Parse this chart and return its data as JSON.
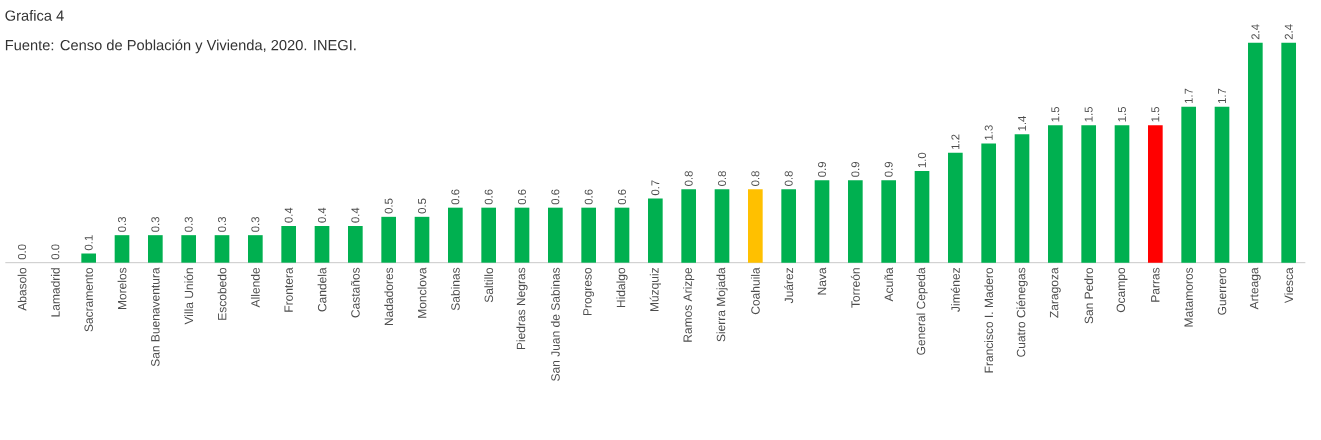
{
  "chart_data": {
    "type": "bar",
    "title": "Grafica 4",
    "annotations": [
      "Fuente: Censo de Población y Vivienda, 2020. INEGI."
    ],
    "categories": [
      "Abasolo",
      "Lamadrid",
      "Sacramento",
      "Morelos",
      "San Buenaventura",
      "Villa Unión",
      "Escobedo",
      "Allende",
      "Frontera",
      "Candela",
      "Castaños",
      "Nadadores",
      "Monclova",
      "Sabinas",
      "Saltillo",
      "Piedras Negras",
      "San Juan de Sabinas",
      "Progreso",
      "Hidalgo",
      "Múzquiz",
      "Ramos Arizpe",
      "Sierra Mojada",
      "Coahuila",
      "Juárez",
      "Nava",
      "Torreón",
      "Acuña",
      "General Cepeda",
      "Jiménez",
      "Francisco I. Madero",
      "Cuatro Ciénegas",
      "Zaragoza",
      "San Pedro",
      "Ocampo",
      "Parras",
      "Matamoros",
      "Guerrero",
      "Arteaga",
      "Viesca"
    ],
    "values": [
      0.0,
      0.0,
      0.1,
      0.3,
      0.3,
      0.3,
      0.3,
      0.3,
      0.4,
      0.4,
      0.4,
      0.5,
      0.5,
      0.6,
      0.6,
      0.6,
      0.6,
      0.6,
      0.6,
      0.7,
      0.8,
      0.8,
      0.8,
      0.8,
      0.9,
      0.9,
      0.9,
      1.0,
      1.2,
      1.3,
      1.4,
      1.5,
      1.5,
      1.5,
      1.5,
      1.7,
      1.7,
      2.4,
      2.4
    ],
    "value_labels": [
      "0.0",
      "0.0",
      "0.1",
      "0.3",
      "0.3",
      "0.3",
      "0.3",
      "0.3",
      "0.4",
      "0.4",
      "0.4",
      "0.5",
      "0.5",
      "0.6",
      "0.6",
      "0.6",
      "0.6",
      "0.6",
      "0.6",
      "0.7",
      "0.8",
      "0.8",
      "0.8",
      "0.8",
      "0.9",
      "0.9",
      "0.9",
      "1.0",
      "1.2",
      "1.3",
      "1.4",
      "1.5",
      "1.5",
      "1.5",
      "1.5",
      "1.7",
      "1.7",
      "2.4",
      "2.4"
    ],
    "colors": [
      "#00b050",
      "#00b050",
      "#00b050",
      "#00b050",
      "#00b050",
      "#00b050",
      "#00b050",
      "#00b050",
      "#00b050",
      "#00b050",
      "#00b050",
      "#00b050",
      "#00b050",
      "#00b050",
      "#00b050",
      "#00b050",
      "#00b050",
      "#00b050",
      "#00b050",
      "#00b050",
      "#00b050",
      "#00b050",
      "#ffc000",
      "#00b050",
      "#00b050",
      "#00b050",
      "#00b050",
      "#00b050",
      "#00b050",
      "#00b050",
      "#00b050",
      "#00b050",
      "#00b050",
      "#00b050",
      "#ff0000",
      "#00b050",
      "#00b050",
      "#00b050",
      "#00b050"
    ],
    "data_labels": true
  }
}
